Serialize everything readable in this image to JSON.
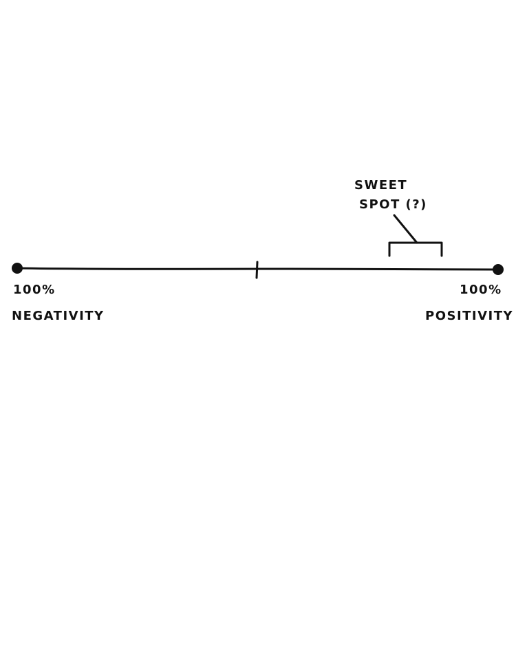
{
  "spectrum": {
    "left_end": {
      "percent": "100%",
      "label": "NEGATIVITY"
    },
    "right_end": {
      "percent": "100%",
      "label": "POSITIVITY"
    }
  },
  "annotation": {
    "line1": "SWEET",
    "line2": "SPOT (?)"
  },
  "colors": {
    "ink": "#111111",
    "background": "#ffffff"
  }
}
